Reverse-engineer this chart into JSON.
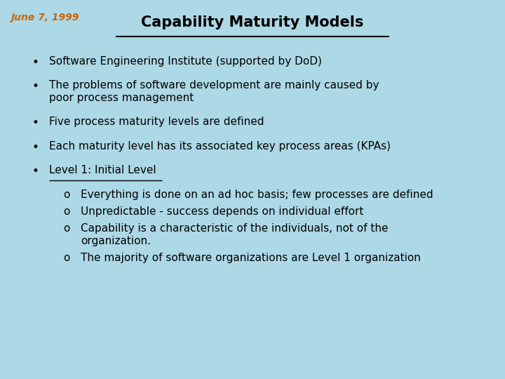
{
  "background_color": "#add8e6",
  "date_text": "June 7, 1999",
  "date_color": "#cc6600",
  "date_fontsize": 10,
  "title": "Capability Maturity Models",
  "title_fontsize": 15,
  "title_color": "#000000",
  "body_fontsize": 11,
  "body_color": "#000000",
  "bullet_char": "•",
  "sub_bullet_char": "o",
  "bullets": [
    {
      "text": "Software Engineering Institute (supported by DoD)",
      "level": 0,
      "underline": false
    },
    {
      "text": "The problems of software development are mainly caused by\npoor process management",
      "level": 0,
      "underline": false
    },
    {
      "text": "Five process maturity levels are defined",
      "level": 0,
      "underline": false
    },
    {
      "text": "Each maturity level has its associated key process areas (KPAs)",
      "level": 0,
      "underline": false
    },
    {
      "text": "Level 1: Initial Level",
      "level": 0,
      "underline": true
    },
    {
      "text": "Everything is done on an ad hoc basis; few processes are defined",
      "level": 1,
      "underline": false
    },
    {
      "text": "Unpredictable - success depends on individual effort",
      "level": 1,
      "underline": false
    },
    {
      "text": "Capability is a characteristic of the individuals, not of the\norganization.",
      "level": 1,
      "underline": false
    },
    {
      "text": "The majority of software organizations are Level 1 organization",
      "level": 1,
      "underline": false
    }
  ],
  "font_family": "sans-serif",
  "figwidth": 7.2,
  "figheight": 5.4,
  "dpi": 100
}
